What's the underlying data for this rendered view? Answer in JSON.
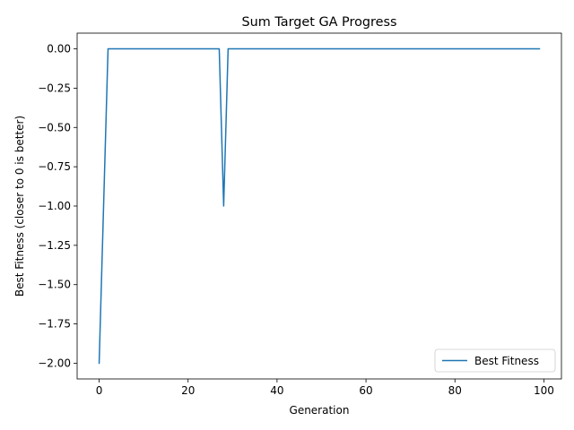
{
  "chart_data": {
    "type": "line",
    "title": "Sum Target GA Progress",
    "xlabel": "Generation",
    "ylabel": "Best Fitness (closer to 0 is better)",
    "xlim": [
      -4.95,
      103.95
    ],
    "ylim": [
      -2.1,
      0.1
    ],
    "xticks": [
      0,
      20,
      40,
      60,
      80,
      100
    ],
    "xtick_labels": [
      "0",
      "20",
      "40",
      "60",
      "80",
      "100"
    ],
    "yticks": [
      0,
      -0.25,
      -0.5,
      -0.75,
      -1,
      -1.25,
      -1.5,
      -1.75,
      -2
    ],
    "ytick_labels": [
      "0.00",
      "−0.25",
      "−0.50",
      "−0.75",
      "−1.00",
      "−1.25",
      "−1.50",
      "−1.75",
      "−2.00"
    ],
    "grid": false,
    "legend_position": "lower-right",
    "series": [
      {
        "name": "Best Fitness",
        "color": "#1f77b4",
        "points": [
          [
            0,
            -2
          ],
          [
            1,
            -1
          ],
          [
            2,
            0
          ],
          [
            27,
            0
          ],
          [
            28,
            -1
          ],
          [
            29,
            0
          ],
          [
            99,
            0
          ]
        ]
      }
    ]
  }
}
